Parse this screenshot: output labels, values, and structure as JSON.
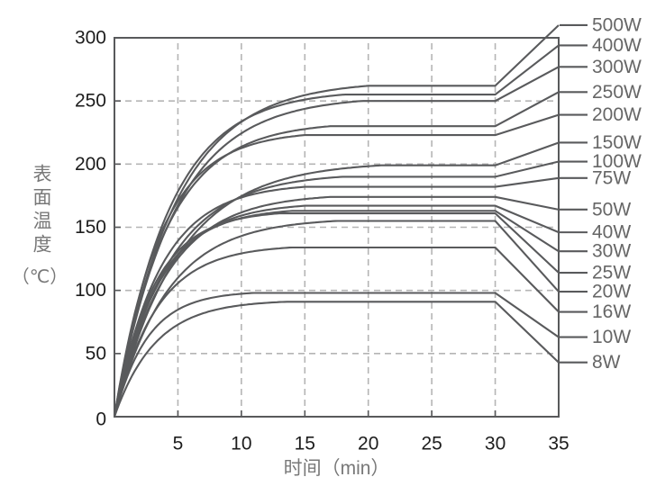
{
  "colors": {
    "curve": "#595a5c",
    "axis": "#58595b",
    "grid": "#b5b5b5",
    "tick_label": "#1d1d1d",
    "axis_title": "#787878",
    "legend_text": "#666666",
    "background": "#ffffff"
  },
  "chart_data": {
    "type": "line",
    "title": "",
    "xlabel": "时间（min）",
    "ylabel": "表面温度",
    "ylabel_unit": "（℃）",
    "xlim": [
      0,
      35
    ],
    "ylim": [
      0,
      300
    ],
    "x_ticks": [
      5,
      10,
      15,
      20,
      25,
      30,
      35
    ],
    "y_ticks": [
      0,
      50,
      100,
      150,
      200,
      250,
      300
    ],
    "grid": "dashed",
    "legend_position": "right",
    "curve_model": "each curve starts at 0 degC at 0 min, rises and saturates to its plateau temperature, holds the plateau until 30 min, then a straight leader line runs to its wattage label at the right edge (35 min)",
    "series": [
      {
        "label": "500W",
        "plateau_temp": 262,
        "time_to_plateau_min": 20,
        "label_anchor_temp": 310
      },
      {
        "label": "400W",
        "plateau_temp": 255,
        "time_to_plateau_min": 18,
        "label_anchor_temp": 294
      },
      {
        "label": "300W",
        "plateau_temp": 250,
        "time_to_plateau_min": 19.5,
        "label_anchor_temp": 277
      },
      {
        "label": "250W",
        "plateau_temp": 230,
        "time_to_plateau_min": 17,
        "label_anchor_temp": 257
      },
      {
        "label": "200W",
        "plateau_temp": 223,
        "time_to_plateau_min": 15,
        "label_anchor_temp": 239
      },
      {
        "label": "150W",
        "plateau_temp": 199,
        "time_to_plateau_min": 21,
        "label_anchor_temp": 217
      },
      {
        "label": "100W",
        "plateau_temp": 190,
        "time_to_plateau_min": 18,
        "label_anchor_temp": 202
      },
      {
        "label": "75W",
        "plateau_temp": 182,
        "time_to_plateau_min": 15,
        "label_anchor_temp": 189
      },
      {
        "label": "50W",
        "plateau_temp": 174,
        "time_to_plateau_min": 17,
        "label_anchor_temp": 164
      },
      {
        "label": "40W",
        "plateau_temp": 167,
        "time_to_plateau_min": 15,
        "label_anchor_temp": 146
      },
      {
        "label": "30W",
        "plateau_temp": 163,
        "time_to_plateau_min": 14,
        "label_anchor_temp": 131
      },
      {
        "label": "25W",
        "plateau_temp": 161,
        "time_to_plateau_min": 13,
        "label_anchor_temp": 114
      },
      {
        "label": "20W",
        "plateau_temp": 155,
        "time_to_plateau_min": 17.5,
        "label_anchor_temp": 99
      },
      {
        "label": "16W",
        "plateau_temp": 134,
        "time_to_plateau_min": 14,
        "label_anchor_temp": 83
      },
      {
        "label": "10W",
        "plateau_temp": 98,
        "time_to_plateau_min": 11,
        "label_anchor_temp": 63
      },
      {
        "label": "8W",
        "plateau_temp": 91,
        "time_to_plateau_min": 13.5,
        "label_anchor_temp": 43
      }
    ]
  }
}
